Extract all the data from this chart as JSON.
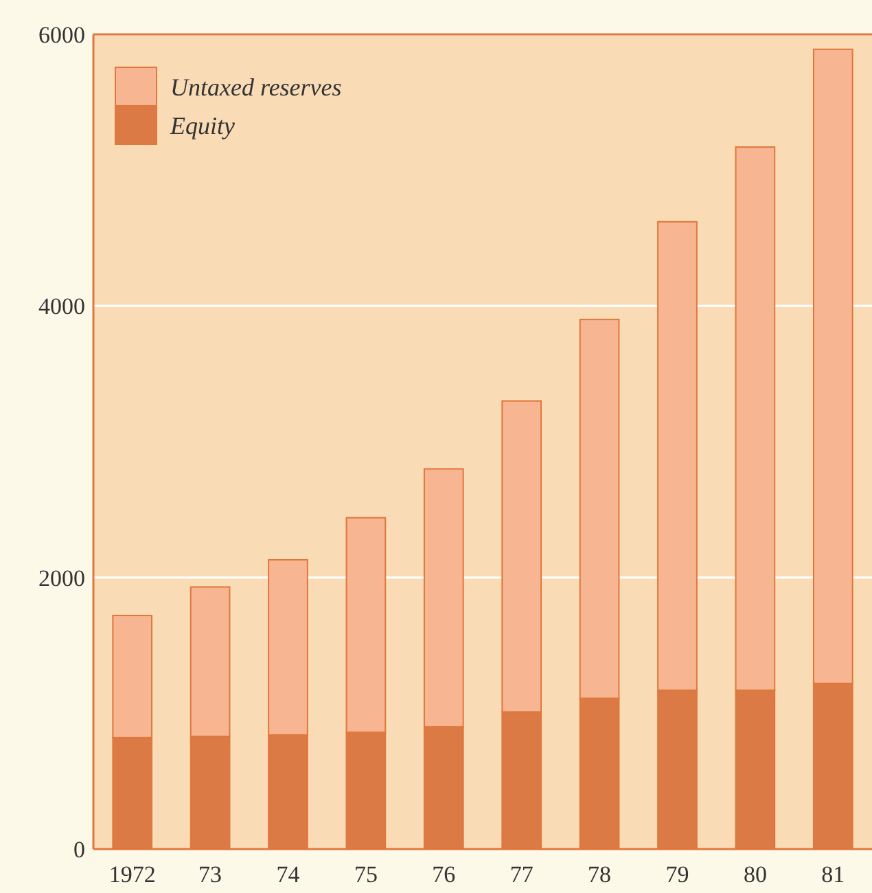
{
  "chart_data": {
    "type": "bar",
    "stacked": true,
    "categories": [
      "1972",
      "73",
      "74",
      "75",
      "76",
      "77",
      "78",
      "79",
      "80",
      "81"
    ],
    "series": [
      {
        "name": "Equity",
        "color": "#dc7a45",
        "values": [
          820,
          830,
          840,
          860,
          900,
          1010,
          1110,
          1170,
          1170,
          1220
        ]
      },
      {
        "name": "Untaxed reserves",
        "color": "#f7b591",
        "values": [
          900,
          1100,
          1290,
          1580,
          1900,
          2290,
          2790,
          3450,
          4000,
          4670
        ]
      }
    ],
    "ylim": [
      0,
      6000
    ],
    "yticks": [
      0,
      2000,
      4000,
      6000
    ],
    "grid": "y",
    "legend": "top left"
  }
}
